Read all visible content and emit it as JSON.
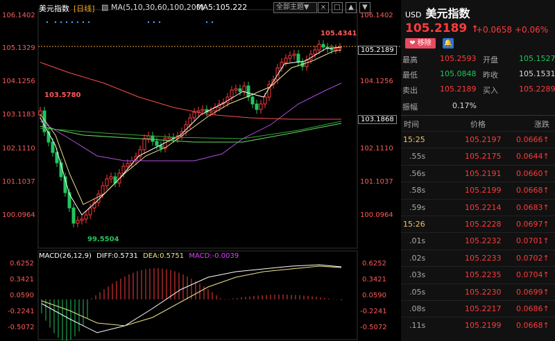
{
  "toolbar": {
    "symbol": "美元指数",
    "period": "[日线]",
    "ma_label": "MA(5,10,30,60,100,200)",
    "ma5_label": "MA5:105.222",
    "theme_dropdown": "全部主题▼",
    "btn_clear": "×",
    "btn_copy": "□",
    "btn_up": "▲",
    "btn_down": "▼"
  },
  "price_axis": {
    "left": [
      "106.1402",
      "105.1329",
      "104.1256",
      "103.1183",
      "102.1110",
      "101.1037",
      "100.0964"
    ],
    "right": [
      "106.1402",
      "105.1329",
      "104.1256",
      "102.1110",
      "101.1037",
      "100.0964"
    ],
    "current_tag": "105.2189",
    "ma_tag": "103.1868"
  },
  "annotations": {
    "high": "105.4341",
    "low": "99.5504",
    "left_high": "103.5780"
  },
  "macd_bar": {
    "title": "MACD(26,12,9)",
    "diff": "DIFF:0.5731",
    "dea": "DEA:0.5751",
    "macd": "MACD:-0.0039"
  },
  "macd_axis": [
    "0.6252",
    "0.3421",
    "0.0590",
    "-0.2241",
    "-0.5072"
  ],
  "colors": {
    "up": "#ff3b3b",
    "down": "#22c55e",
    "ma5": "#ffffff",
    "ma10": "#f0e68c",
    "ma30": "#b44fe0",
    "ma60": "#ff4d4d",
    "ma100": "#66dd66",
    "ma200": "#33aa33"
  },
  "panel": {
    "usd": "USD",
    "name": "美元指数",
    "price": "105.2189",
    "arrow": "↑",
    "change": "+0.0658",
    "change_pct": "+0.06%",
    "remove_btn": "❤ 移除",
    "bell_icon": "🔔",
    "quotes": [
      {
        "l1": "最高",
        "v1": "105.2593",
        "l2": "开盘",
        "v2": "105.1527"
      },
      {
        "l1": "最低",
        "v1": "105.0848",
        "l2": "昨收",
        "v2": "105.1531"
      },
      {
        "l1": "卖出",
        "v1": "105.2189",
        "l2": "买入",
        "v2": "105.2289"
      }
    ],
    "amplitude_label": "振幅",
    "amplitude": "0.17%",
    "headers": {
      "time": "时间",
      "price": "价格",
      "change": "涨跌"
    },
    "ticks": [
      {
        "t": "15:25",
        "p": "105.2197",
        "c": "0.0666↑"
      },
      {
        "t": ".55s",
        "p": "105.2175",
        "c": "0.0644↑"
      },
      {
        "t": ".56s",
        "p": "105.2191",
        "c": "0.0660↑"
      },
      {
        "t": ".58s",
        "p": "105.2199",
        "c": "0.0668↑"
      },
      {
        "t": ".59s",
        "p": "105.2214",
        "c": "0.0683↑"
      },
      {
        "t": "15:26",
        "p": "105.2228",
        "c": "0.0697↑"
      },
      {
        "t": ".01s",
        "p": "105.2232",
        "c": "0.0701↑"
      },
      {
        "t": ".02s",
        "p": "105.2233",
        "c": "0.0702↑"
      },
      {
        "t": ".03s",
        "p": "105.2235",
        "c": "0.0704↑"
      },
      {
        "t": ".05s",
        "p": "105.2230",
        "c": "0.0699↑"
      },
      {
        "t": ".08s",
        "p": "105.2217",
        "c": "0.0686↑"
      },
      {
        "t": ".11s",
        "p": "105.2199",
        "c": "0.0668↑"
      }
    ]
  }
}
